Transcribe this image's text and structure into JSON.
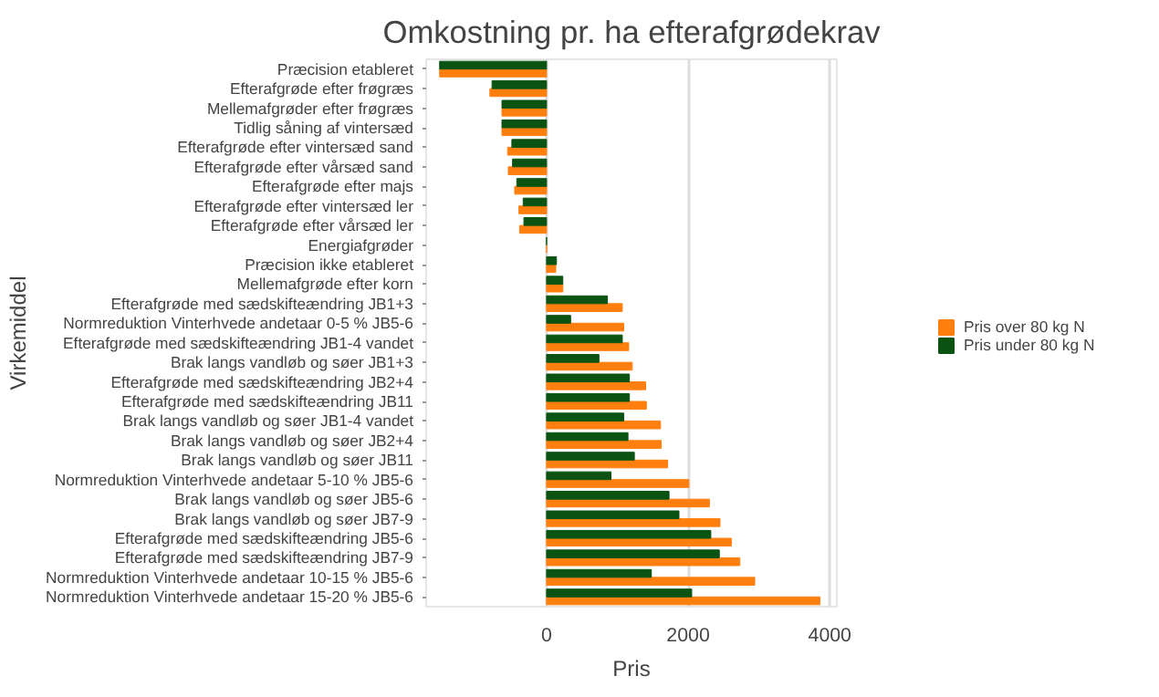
{
  "chart_data": {
    "type": "bar",
    "orientation": "horizontal",
    "title": "Omkostning pr. ha efterafgrødekrav",
    "xlabel": "Pris",
    "ylabel": "Virkemiddel",
    "categories": [
      "Præcision etableret",
      "Efterafgrøde efter frøgræs",
      "Mellemafgrøder efter frøgræs",
      "Tidlig såning af vintersæd",
      "Efterafgrøde efter vintersæd sand",
      "Efterafgrøde efter vårsæd sand",
      "Efterafgrøde efter majs",
      "Efterafgrøde efter vintersæd ler",
      "Efterafgrøde efter vårsæd ler",
      "Energiafgrøder",
      "Præcision ikke etableret",
      "Mellemafgrøde efter korn",
      "Efterafgrøde med sædskifteændring JB1+3",
      "Normreduktion Vinterhvede andetaar 0-5 % JB5-6",
      "Efterafgrøde med sædskifteændring JB1-4 vandet",
      "Brak langs vandløb og søer JB1+3",
      "Efterafgrøde med sædskifteændring JB2+4",
      "Efterafgrøde med sædskifteændring JB11",
      "Brak langs vandløb og søer JB1-4 vandet",
      "Brak langs vandløb og søer JB2+4",
      "Brak langs vandløb og søer JB11",
      "Normreduktion Vinterhvede andetaar 5-10 % JB5-6",
      "Brak langs vandløb og søer JB5-6",
      "Brak langs vandløb og søer JB7-9",
      "Efterafgrøde med sædskifteændring JB5-6",
      "Efterafgrøde med sædskifteændring JB7-9",
      "Normreduktion Vinterhvede andetaar 10-15 % JB5-6",
      "Normreduktion Vinterhvede andetaar 15-20 % JB5-6"
    ],
    "series": [
      {
        "name": "Pris over 80 kg N",
        "color": "#ff7f0e",
        "values": [
          -1510,
          -800,
          -630,
          -630,
          -550,
          -540,
          -450,
          -390,
          -380,
          0,
          130,
          230,
          1070,
          1090,
          1160,
          1210,
          1400,
          1410,
          1610,
          1620,
          1710,
          2010,
          2300,
          2450,
          2610,
          2730,
          2940,
          3860
        ]
      },
      {
        "name": "Pris under 80 kg N",
        "color": "#0b5313",
        "values": [
          -1510,
          -770,
          -630,
          -630,
          -490,
          -480,
          -420,
          -330,
          -320,
          0,
          140,
          230,
          860,
          340,
          1070,
          740,
          1170,
          1170,
          1090,
          1150,
          1240,
          910,
          1730,
          1870,
          2320,
          2440,
          1480,
          2050
        ]
      }
    ],
    "xlim": [
      -1700,
      4100
    ],
    "xticks": [
      0,
      2000,
      4000
    ],
    "grid": "x",
    "legend": "right"
  }
}
